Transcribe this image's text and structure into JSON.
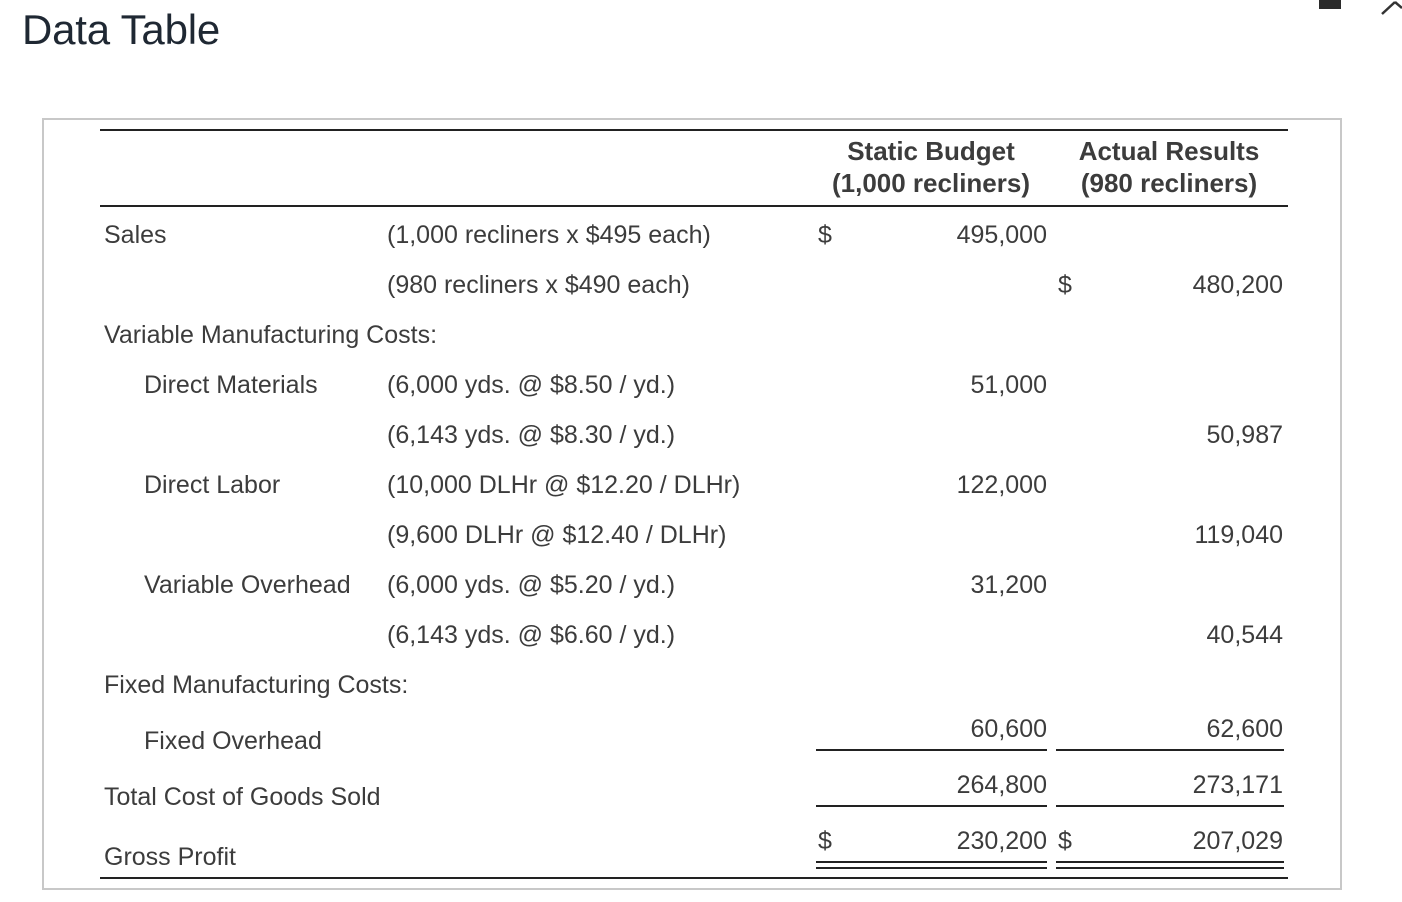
{
  "window": {
    "title": "Data Table",
    "minimize_icon": "minimize-icon",
    "close_icon": "close-icon"
  },
  "table": {
    "headers": {
      "static_budget": [
        "Static Budget",
        "(1,000 recliners)"
      ],
      "actual_results": [
        "Actual Results",
        "(980 recliners)"
      ]
    },
    "currency_symbol": "$",
    "rows": {
      "sales_label": "Sales",
      "sales_static_desc": "(1,000 recliners x $495 each)",
      "sales_static_value": "495,000",
      "sales_actual_desc": "(980 recliners x $490 each)",
      "sales_actual_value": "480,200",
      "vmc_label": "Variable Manufacturing Costs:",
      "dm_label": "Direct Materials",
      "dm_static_desc": "(6,000 yds. @ $8.50 / yd.)",
      "dm_static_value": "51,000",
      "dm_actual_desc": "(6,143 yds. @ $8.30 / yd.)",
      "dm_actual_value": "50,987",
      "dl_label": "Direct Labor",
      "dl_static_desc": "(10,000 DLHr @ $12.20 / DLHr)",
      "dl_static_value": "122,000",
      "dl_actual_desc": "(9,600 DLHr @ $12.40 / DLHr)",
      "dl_actual_value": "119,040",
      "vo_label": "Variable Overhead",
      "vo_static_desc": "(6,000 yds. @ $5.20 / yd.)",
      "vo_static_value": "31,200",
      "vo_actual_desc": "(6,143 yds. @ $6.60 / yd.)",
      "vo_actual_value": "40,544",
      "fmc_label": "Fixed Manufacturing Costs:",
      "fo_label": "Fixed Overhead",
      "fo_static_value": "60,600",
      "fo_actual_value": "62,600",
      "tcogs_label": "Total Cost of Goods Sold",
      "tcogs_static_value": "264,800",
      "tcogs_actual_value": "273,171",
      "gp_label": "Gross Profit",
      "gp_static_value": "230,200",
      "gp_actual_value": "207,029"
    }
  }
}
